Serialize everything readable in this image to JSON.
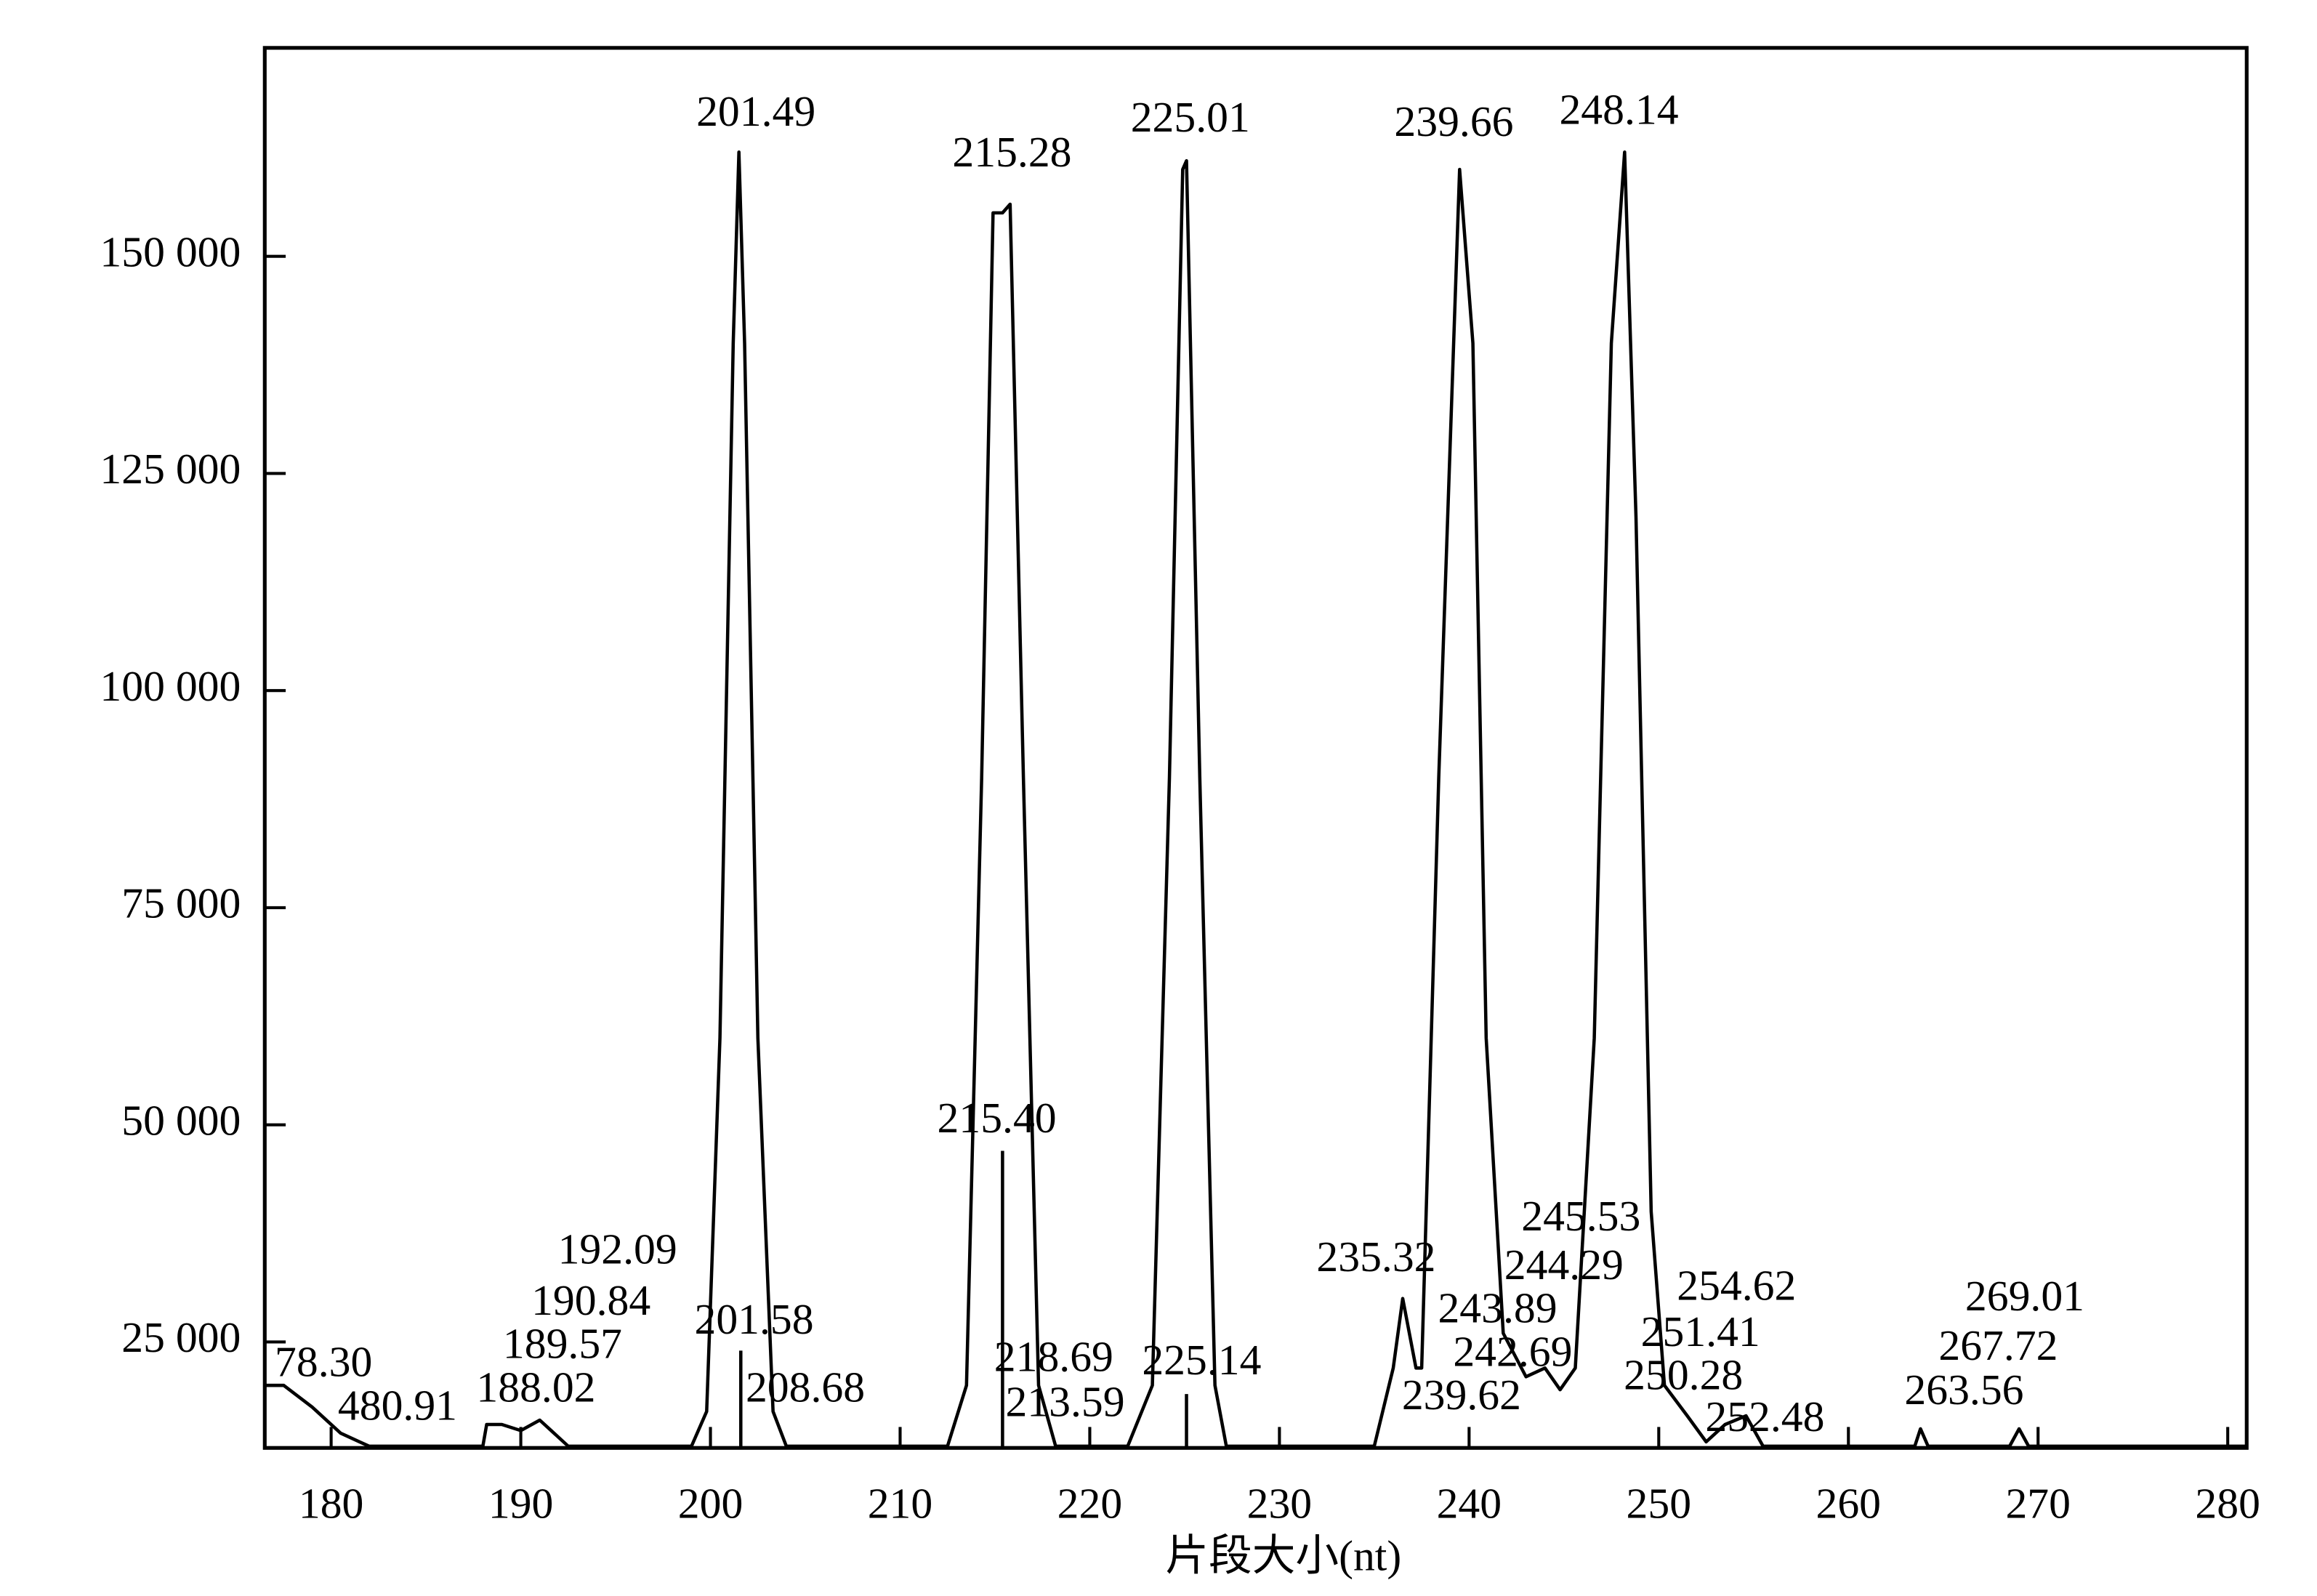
{
  "chart_data": {
    "type": "line",
    "x_label": "片段大小(nt)",
    "xlim": [
      176.5,
      281
    ],
    "ylim": [
      12800,
      174000
    ],
    "xticks": [
      180,
      190,
      200,
      210,
      220,
      230,
      240,
      250,
      260,
      270,
      280
    ],
    "yticks": [
      {
        "value": 25000,
        "label": "25 000"
      },
      {
        "value": 50000,
        "label": "50 000"
      },
      {
        "value": 75000,
        "label": "75 000"
      },
      {
        "value": 100000,
        "label": "100 000"
      },
      {
        "value": 125000,
        "label": "125 000"
      },
      {
        "value": 150000,
        "label": "150 000"
      }
    ],
    "series": [
      {
        "color": "#000000",
        "x": [
          176.5,
          177.5,
          179,
          180.5,
          181.5,
          182,
          183,
          188,
          188.2,
          189,
          190,
          191,
          192.5,
          199,
          199.8,
          200.5,
          201.2,
          201.5,
          201.8,
          202.5,
          203.3,
          204,
          212.5,
          213.5,
          214.3,
          214.9,
          215.4,
          215.8,
          216.5,
          217.3,
          218.2,
          222,
          223.3,
          224.2,
          224.9,
          225.1,
          225.8,
          226.6,
          227.2,
          235,
          236,
          236.5,
          237.2,
          237.5,
          238.4,
          239.5,
          240.2,
          240.9,
          241.8,
          243,
          244,
          244.8,
          245.6,
          246.6,
          247.5,
          248.2,
          248.8,
          249.6,
          250.3,
          251.5,
          252.5,
          253.5,
          254.6,
          255.5,
          263.5,
          263.8,
          264.2,
          268.5,
          269,
          269.5,
          281
        ],
        "values": [
          20000,
          20000,
          17500,
          14500,
          13500,
          13000,
          13000,
          13000,
          15500,
          15500,
          14800,
          16000,
          13000,
          13000,
          17000,
          60000,
          140000,
          162000,
          140000,
          60000,
          17000,
          13000,
          13000,
          20000,
          90000,
          155000,
          155000,
          156000,
          90000,
          20000,
          13000,
          13000,
          20000,
          90000,
          160000,
          161000,
          90000,
          20000,
          13000,
          13000,
          22000,
          30000,
          22000,
          22000,
          90000,
          160000,
          140000,
          60000,
          26000,
          21000,
          22000,
          19500,
          22000,
          60000,
          140000,
          162000,
          120000,
          40000,
          20000,
          16500,
          13500,
          15500,
          16500,
          13000,
          13000,
          15000,
          13000,
          13000,
          15000,
          13000,
          13000
        ]
      },
      {
        "color": "#000000",
        "x": [
          201.6,
          201.6,
          null,
          215.4,
          215.4,
          null,
          225.1,
          225.1
        ],
        "values": [
          12800,
          24000,
          null,
          12800,
          47000,
          null,
          12800,
          19000
        ]
      }
    ],
    "annotations": [
      {
        "text": "201.49",
        "x": 202.4,
        "y": 166200
      },
      {
        "text": "215.28",
        "x": 215.9,
        "y": 161500
      },
      {
        "text": "225.01",
        "x": 225.3,
        "y": 165500
      },
      {
        "text": "239.66",
        "x": 239.2,
        "y": 165000
      },
      {
        "text": "248.14",
        "x": 247.9,
        "y": 166400
      },
      {
        "text": "215.40",
        "x": 215.1,
        "y": 50300
      },
      {
        "text": "192.09",
        "x": 195.1,
        "y": 35200
      },
      {
        "text": "190.84",
        "x": 193.7,
        "y": 29300
      },
      {
        "text": "189.57",
        "x": 192.2,
        "y": 24300
      },
      {
        "text": "188.02",
        "x": 190.8,
        "y": 19300
      },
      {
        "text": "201.58",
        "x": 202.3,
        "y": 27100
      },
      {
        "text": "208.68",
        "x": 205.0,
        "y": 19300
      },
      {
        "text": "78.30",
        "x": 179.6,
        "y": 22200
      },
      {
        "text": "480.91",
        "x": 183.5,
        "y": 17200
      },
      {
        "text": "235.32",
        "x": 235.1,
        "y": 34300
      },
      {
        "text": "243.89",
        "x": 241.5,
        "y": 28400
      },
      {
        "text": "245.53",
        "x": 245.9,
        "y": 39000
      },
      {
        "text": "244.29",
        "x": 245.0,
        "y": 33400
      },
      {
        "text": "242.69",
        "x": 242.3,
        "y": 23400
      },
      {
        "text": "239.62",
        "x": 239.6,
        "y": 18400
      },
      {
        "text": "218.69",
        "x": 218.1,
        "y": 22800
      },
      {
        "text": "213.59",
        "x": 218.7,
        "y": 17600
      },
      {
        "text": "225.14",
        "x": 225.9,
        "y": 22400
      },
      {
        "text": "254.62",
        "x": 254.1,
        "y": 31000
      },
      {
        "text": "251.41",
        "x": 252.2,
        "y": 25700
      },
      {
        "text": "250.28",
        "x": 251.3,
        "y": 20700
      },
      {
        "text": "252.48",
        "x": 255.6,
        "y": 15900
      },
      {
        "text": "263.56",
        "x": 266.1,
        "y": 19000
      },
      {
        "text": "267.72",
        "x": 267.9,
        "y": 24100
      },
      {
        "text": "269.01",
        "x": 269.3,
        "y": 29800
      }
    ]
  }
}
